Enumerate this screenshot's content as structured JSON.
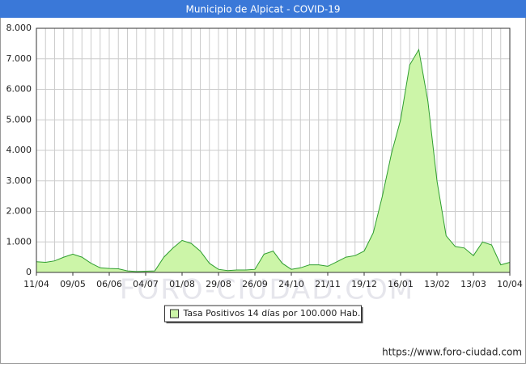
{
  "chart_data": {
    "type": "area",
    "title": "Municipio de Alpicat - COVID-19",
    "x": [
      "11/04",
      null,
      null,
      null,
      "09/05",
      null,
      null,
      null,
      "06/06",
      null,
      null,
      null,
      "04/07",
      null,
      null,
      null,
      "01/08",
      null,
      null,
      null,
      "29/08",
      null,
      null,
      null,
      "26/09",
      null,
      null,
      null,
      "24/10",
      null,
      null,
      null,
      "21/11",
      null,
      null,
      null,
      "19/12",
      null,
      null,
      null,
      "16/01",
      null,
      null,
      null,
      "13/02",
      null,
      null,
      null,
      "13/03",
      null,
      null,
      null,
      "10/04"
    ],
    "series": [
      {
        "name": "Tasa Positivos 14 días por 100.000 Hab.",
        "color": "#2e9e2e",
        "fill": "#ccf5a8",
        "values": [
          350,
          330,
          380,
          500,
          600,
          500,
          300,
          150,
          130,
          120,
          50,
          30,
          40,
          50,
          500,
          800,
          1050,
          950,
          700,
          300,
          100,
          60,
          80,
          80,
          100,
          600,
          700,
          300,
          100,
          150,
          250,
          250,
          200,
          350,
          500,
          550,
          700,
          1300,
          2500,
          3900,
          5000,
          6800,
          7300,
          5600,
          3000,
          1200,
          850,
          800,
          550,
          1000,
          900,
          250,
          330
        ]
      }
    ],
    "ylim": [
      0,
      8000
    ],
    "yticks": [
      0,
      {
        "value": 1000,
        "label": "1.000"
      },
      {
        "value": 2000,
        "label": "2.000"
      },
      {
        "value": 3000,
        "label": "3.000"
      },
      {
        "value": 4000,
        "label": "4.000"
      },
      {
        "value": 5000,
        "label": "5.000"
      },
      {
        "value": 6000,
        "label": "6.000"
      },
      {
        "value": 7000,
        "label": "7.000"
      },
      {
        "value": 8000,
        "label": "8.000"
      }
    ],
    "grid": true,
    "watermark": "FORO-CIUDAD.COM",
    "source": "https://www.foro-ciudad.com"
  }
}
